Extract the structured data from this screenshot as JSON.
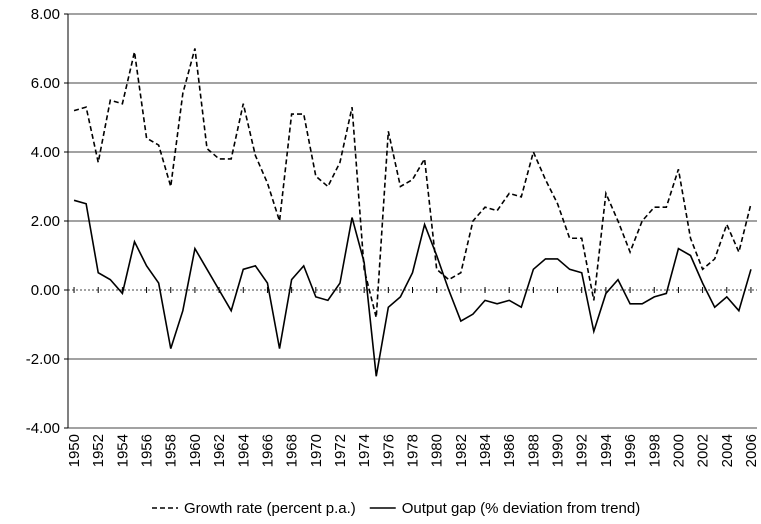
{
  "chart_data": {
    "type": "line",
    "x": [
      1950,
      1951,
      1952,
      1953,
      1954,
      1955,
      1956,
      1957,
      1958,
      1959,
      1960,
      1961,
      1962,
      1963,
      1964,
      1965,
      1966,
      1967,
      1968,
      1969,
      1970,
      1971,
      1972,
      1973,
      1974,
      1975,
      1976,
      1977,
      1978,
      1979,
      1980,
      1981,
      1982,
      1983,
      1984,
      1985,
      1986,
      1987,
      1988,
      1989,
      1990,
      1991,
      1992,
      1993,
      1994,
      1995,
      1996,
      1997,
      1998,
      1999,
      2000,
      2001,
      2002,
      2003,
      2004,
      2005,
      2006
    ],
    "series": [
      {
        "name": "Growth rate (percent p.a.)",
        "color": "#000000",
        "dash": true,
        "values": [
          5.2,
          5.3,
          3.7,
          5.5,
          5.4,
          6.9,
          4.4,
          4.2,
          3.0,
          5.7,
          7.0,
          4.1,
          3.8,
          3.8,
          5.4,
          3.9,
          3.1,
          2.0,
          5.1,
          5.1,
          3.3,
          3.0,
          3.7,
          5.3,
          0.6,
          -0.8,
          4.6,
          3.0,
          3.2,
          3.8,
          0.6,
          0.3,
          0.5,
          2.0,
          2.4,
          2.3,
          2.8,
          2.7,
          4.0,
          3.2,
          2.5,
          1.5,
          1.5,
          -0.3,
          2.8,
          2.0,
          1.1,
          2.0,
          2.4,
          2.4,
          3.5,
          1.5,
          0.6,
          0.9,
          1.9,
          1.1,
          2.5
        ]
      },
      {
        "name": "Output gap (% deviation from trend)",
        "color": "#000000",
        "dash": false,
        "values": [
          2.6,
          2.5,
          0.5,
          0.3,
          -0.1,
          1.4,
          0.7,
          0.2,
          -1.7,
          -0.6,
          1.2,
          0.6,
          0.0,
          -0.6,
          0.6,
          0.7,
          0.2,
          -1.7,
          0.3,
          0.7,
          -0.2,
          -0.3,
          0.2,
          2.1,
          0.8,
          -2.5,
          -0.5,
          -0.2,
          0.5,
          1.9,
          1.0,
          0.0,
          -0.9,
          -0.7,
          -0.3,
          -0.4,
          -0.3,
          -0.5,
          0.6,
          0.9,
          0.9,
          0.6,
          0.5,
          -1.2,
          -0.1,
          0.3,
          -0.4,
          -0.4,
          -0.2,
          -0.1,
          1.2,
          1.0,
          0.2,
          -0.5,
          -0.2,
          -0.6,
          0.6
        ]
      }
    ],
    "xlim": [
      1949.5,
      2006.5
    ],
    "xticks": [
      1950,
      1952,
      1954,
      1956,
      1958,
      1960,
      1962,
      1964,
      1966,
      1968,
      1970,
      1972,
      1974,
      1976,
      1978,
      1980,
      1982,
      1984,
      1986,
      1988,
      1990,
      1992,
      1994,
      1996,
      1998,
      2000,
      2002,
      2004,
      2006
    ],
    "ylim": [
      -4,
      8
    ],
    "yticks": [
      {
        "value": -4,
        "label": "-4.00"
      },
      {
        "value": -2,
        "label": "-2.00"
      },
      {
        "value": 0,
        "label": "0.00"
      },
      {
        "value": 2,
        "label": "2.00"
      },
      {
        "value": 4,
        "label": "4.00"
      },
      {
        "value": 6,
        "label": "6.00"
      },
      {
        "value": 8,
        "label": "8.00"
      }
    ],
    "grid": true
  }
}
